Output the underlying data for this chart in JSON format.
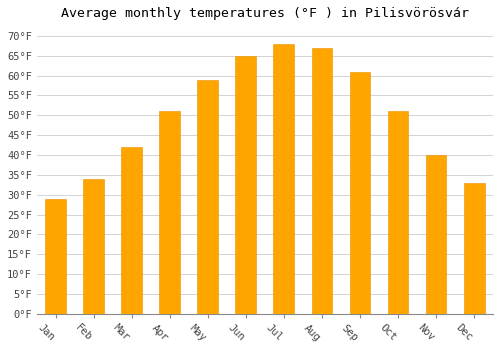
{
  "months": [
    "Jan",
    "Feb",
    "Mar",
    "Apr",
    "May",
    "Jun",
    "Jul",
    "Aug",
    "Sep",
    "Oct",
    "Nov",
    "Dec"
  ],
  "values": [
    29,
    34,
    42,
    51,
    59,
    65,
    68,
    67,
    61,
    51,
    40,
    33
  ],
  "bar_color": "#FFA500",
  "bar_edge_color": "#E89000",
  "background_color": "#FFFFFF",
  "grid_color": "#CCCCCC",
  "title": "Average monthly temperatures (°F ) in Pilisvörösvár",
  "title_fontsize": 9.5,
  "ylim": [
    0,
    72
  ],
  "yticks": [
    0,
    5,
    10,
    15,
    20,
    25,
    30,
    35,
    40,
    45,
    50,
    55,
    60,
    65,
    70
  ],
  "ylabel_suffix": "°F",
  "tick_fontsize": 7.5,
  "xlabel_rotation": -45,
  "bar_width": 0.55
}
